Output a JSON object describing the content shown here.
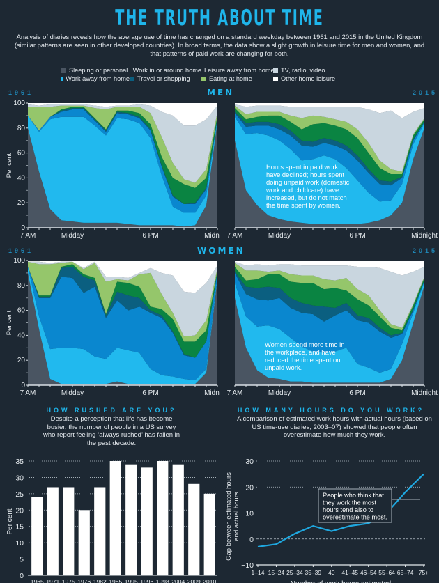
{
  "header": {
    "title": "THE TRUTH ABOUT TIME",
    "intro": "Analysis of diaries reveals how the average use of time has changed on a standard weekday between 1961 and 2015 in the United Kingdom (similar patterns are seen in other developed countries). In broad terms, the data show a slight growth in leisure time for men and women, and that patterns of paid work are changing for both."
  },
  "legend": [
    {
      "label": "Sleeping or personal",
      "color": "#4a5562"
    },
    {
      "label": "Work in or around home",
      "color": "#0a87cf"
    },
    {
      "label": "Leisure away from home",
      "color": "#0a8442"
    },
    {
      "label": "TV, radio, video",
      "color": "#c9d6df"
    },
    {
      "label": "Work away from home",
      "color": "#21b9ee"
    },
    {
      "label": "Travel or shopping",
      "color": "#0b5f80"
    },
    {
      "label": "Eating at home",
      "color": "#95c66b"
    },
    {
      "label": "Other home leisure",
      "color": "#ffffff"
    }
  ],
  "sections": {
    "men": "MEN",
    "women": "WOMEN",
    "year_left": "1961",
    "year_right": "2015"
  },
  "chart_data": [
    {
      "type": "area",
      "title": "MEN 1961",
      "ylabel": "Per cent",
      "ylim": [
        0,
        100
      ],
      "xticks": [
        "7 AM",
        "Midday",
        "6 PM",
        "Midnight"
      ],
      "x": [
        7,
        8,
        9,
        10,
        11,
        12,
        13,
        14,
        15,
        16,
        17,
        18,
        19,
        20,
        21,
        22,
        23,
        24
      ],
      "series": [
        {
          "name": "Sleeping or personal",
          "values": [
            80,
            45,
            15,
            6,
            5,
            4,
            4,
            4,
            4,
            3,
            2,
            2,
            2,
            2,
            1,
            2,
            18,
            85
          ]
        },
        {
          "name": "Work away from home",
          "values": [
            10,
            32,
            72,
            83,
            84,
            85,
            78,
            70,
            84,
            84,
            82,
            70,
            40,
            15,
            11,
            10,
            8,
            2
          ]
        },
        {
          "name": "Work in or around home",
          "values": [
            0,
            1,
            2,
            4,
            6,
            6,
            4,
            3,
            4,
            4,
            4,
            6,
            7,
            8,
            7,
            7,
            5,
            1
          ]
        },
        {
          "name": "Travel or shopping",
          "values": [
            0,
            0,
            0,
            1,
            1,
            1,
            1,
            1,
            1,
            1,
            1,
            1,
            1,
            1,
            0,
            1,
            1,
            0
          ]
        },
        {
          "name": "Leisure away from home",
          "values": [
            0,
            0,
            0,
            1,
            1,
            1,
            1,
            1,
            1,
            2,
            3,
            4,
            7,
            14,
            16,
            12,
            8,
            2
          ]
        },
        {
          "name": "Eating at home",
          "values": [
            7,
            19,
            8,
            3,
            1,
            1,
            8,
            16,
            3,
            3,
            5,
            9,
            16,
            12,
            4,
            4,
            7,
            3
          ]
        },
        {
          "name": "TV, radio, video",
          "values": [
            2,
            1,
            2,
            1,
            1,
            1,
            2,
            2,
            1,
            1,
            2,
            6,
            20,
            38,
            43,
            46,
            40,
            5
          ]
        },
        {
          "name": "Other home leisure",
          "values": [
            1,
            2,
            1,
            1,
            1,
            1,
            2,
            3,
            2,
            2,
            1,
            2,
            7,
            10,
            18,
            18,
            13,
            2
          ]
        }
      ]
    },
    {
      "type": "area",
      "title": "MEN 2015",
      "ylabel": "Per cent",
      "ylim": [
        0,
        100
      ],
      "xticks": [
        "7 AM",
        "Midday",
        "6 PM",
        "Midnight"
      ],
      "x": [
        7,
        8,
        9,
        10,
        11,
        12,
        13,
        14,
        15,
        16,
        17,
        18,
        19,
        20,
        21,
        22,
        23,
        24
      ],
      "series": [
        {
          "name": "Sleeping or personal",
          "values": [
            70,
            30,
            18,
            10,
            7,
            5,
            4,
            3,
            3,
            3,
            3,
            3,
            4,
            6,
            10,
            20,
            55,
            80
          ]
        },
        {
          "name": "Work away from home",
          "values": [
            19,
            45,
            58,
            64,
            63,
            58,
            50,
            52,
            55,
            52,
            45,
            35,
            24,
            15,
            12,
            15,
            12,
            4
          ]
        },
        {
          "name": "Work in or around home",
          "values": [
            3,
            6,
            6,
            8,
            9,
            11,
            12,
            10,
            10,
            11,
            14,
            16,
            16,
            14,
            12,
            5,
            3,
            1
          ]
        },
        {
          "name": "Travel or shopping",
          "values": [
            1,
            3,
            3,
            3,
            4,
            4,
            4,
            4,
            4,
            4,
            4,
            4,
            3,
            3,
            3,
            1,
            1,
            0
          ]
        },
        {
          "name": "Leisure away from home",
          "values": [
            3,
            3,
            4,
            5,
            7,
            7,
            9,
            14,
            12,
            12,
            13,
            14,
            13,
            10,
            6,
            2,
            3,
            2
          ]
        },
        {
          "name": "Eating at home",
          "values": [
            2,
            4,
            4,
            3,
            3,
            5,
            9,
            7,
            5,
            5,
            6,
            7,
            8,
            6,
            4,
            2,
            1,
            1
          ]
        },
        {
          "name": "TV, radio, video",
          "values": [
            1,
            6,
            5,
            5,
            5,
            7,
            9,
            7,
            8,
            10,
            12,
            18,
            27,
            38,
            47,
            43,
            18,
            8
          ]
        },
        {
          "name": "Other home leisure",
          "values": [
            1,
            3,
            2,
            2,
            2,
            3,
            3,
            3,
            3,
            3,
            3,
            3,
            5,
            8,
            6,
            12,
            7,
            4
          ]
        }
      ]
    },
    {
      "type": "area",
      "title": "WOMEN 1961",
      "ylabel": "Per cent",
      "ylim": [
        0,
        100
      ],
      "xticks": [
        "7 AM",
        "Midday",
        "6 PM",
        "Midnight"
      ],
      "x": [
        7,
        8,
        9,
        10,
        11,
        12,
        13,
        14,
        15,
        16,
        17,
        18,
        19,
        20,
        21,
        22,
        23,
        24
      ],
      "series": [
        {
          "name": "Sleeping or personal",
          "values": [
            90,
            45,
            5,
            1,
            1,
            1,
            1,
            1,
            3,
            1,
            1,
            1,
            1,
            1,
            1,
            1,
            10,
            85
          ]
        },
        {
          "name": "Work away from home",
          "values": [
            5,
            10,
            24,
            29,
            29,
            28,
            22,
            20,
            27,
            27,
            25,
            12,
            7,
            6,
            4,
            3,
            3,
            2
          ]
        },
        {
          "name": "Work in or around home",
          "values": [
            0,
            15,
            41,
            57,
            56,
            45,
            56,
            33,
            38,
            32,
            37,
            45,
            46,
            35,
            19,
            18,
            22,
            4
          ]
        },
        {
          "name": "Travel or shopping",
          "values": [
            0,
            1,
            1,
            7,
            9,
            13,
            5,
            2,
            7,
            12,
            7,
            2,
            2,
            1,
            1,
            0,
            0,
            0
          ]
        },
        {
          "name": "Leisure away from home",
          "values": [
            0,
            1,
            1,
            1,
            2,
            2,
            2,
            1,
            8,
            10,
            9,
            3,
            5,
            10,
            10,
            13,
            9,
            1
          ]
        },
        {
          "name": "Eating at home",
          "values": [
            4,
            25,
            25,
            3,
            2,
            4,
            12,
            26,
            2,
            2,
            10,
            27,
            12,
            5,
            4,
            5,
            8,
            2
          ]
        },
        {
          "name": "TV, radio, video",
          "values": [
            0,
            2,
            1,
            1,
            0,
            1,
            1,
            4,
            2,
            2,
            1,
            4,
            17,
            30,
            36,
            34,
            30,
            2
          ]
        },
        {
          "name": "Other home leisure",
          "values": [
            1,
            1,
            2,
            1,
            1,
            6,
            1,
            13,
            13,
            14,
            10,
            6,
            10,
            12,
            25,
            26,
            18,
            4
          ]
        }
      ]
    },
    {
      "type": "area",
      "title": "WOMEN 2015",
      "ylabel": "Per cent",
      "ylim": [
        0,
        100
      ],
      "xticks": [
        "7 AM",
        "Midday",
        "6 PM",
        "Midnight"
      ],
      "x": [
        7,
        8,
        9,
        10,
        11,
        12,
        13,
        14,
        15,
        16,
        17,
        18,
        19,
        20,
        21,
        22,
        23,
        24
      ],
      "series": [
        {
          "name": "Sleeping or personal",
          "values": [
            70,
            30,
            12,
            6,
            5,
            3,
            3,
            2,
            2,
            2,
            2,
            2,
            2,
            2,
            5,
            20,
            50,
            80
          ]
        },
        {
          "name": "Work away from home",
          "values": [
            12,
            25,
            35,
            42,
            40,
            35,
            28,
            25,
            24,
            25,
            28,
            15,
            12,
            8,
            8,
            13,
            8,
            3
          ]
        },
        {
          "name": "Work in or around home",
          "values": [
            8,
            18,
            22,
            20,
            25,
            24,
            27,
            30,
            25,
            29,
            30,
            35,
            36,
            33,
            25,
            8,
            2,
            1
          ]
        },
        {
          "name": "Travel or shopping",
          "values": [
            1,
            6,
            9,
            11,
            8,
            8,
            8,
            7,
            12,
            6,
            6,
            4,
            4,
            3,
            2,
            1,
            1,
            0
          ]
        },
        {
          "name": "Leisure away from home",
          "values": [
            4,
            5,
            7,
            10,
            11,
            13,
            16,
            18,
            14,
            16,
            10,
            13,
            10,
            9,
            6,
            2,
            3,
            2
          ]
        },
        {
          "name": "Eating at home",
          "values": [
            3,
            8,
            7,
            2,
            3,
            6,
            6,
            6,
            8,
            6,
            10,
            8,
            8,
            5,
            3,
            2,
            1,
            1
          ]
        },
        {
          "name": "TV, radio, video",
          "values": [
            1,
            4,
            5,
            5,
            5,
            8,
            8,
            8,
            11,
            12,
            10,
            18,
            23,
            34,
            42,
            42,
            26,
            8
          ]
        },
        {
          "name": "Other home leisure",
          "values": [
            1,
            4,
            3,
            4,
            3,
            3,
            4,
            4,
            4,
            4,
            4,
            5,
            5,
            6,
            9,
            12,
            9,
            5
          ]
        }
      ]
    },
    {
      "type": "bar",
      "title": "HOW RUSHED ARE YOU?",
      "subtitle": "Despite a perception that life has become busier, the number of people in a US survey who report feeling ‘always rushed’ has fallen in the past decade.",
      "xlabel": "",
      "ylabel": "Per cent",
      "ylim": [
        0,
        35
      ],
      "yticks": [
        0,
        5,
        10,
        15,
        20,
        25,
        30,
        35
      ],
      "grid": true,
      "categories": [
        "1965",
        "1971",
        "1975",
        "1976",
        "1982",
        "1985",
        "1995",
        "1996",
        "1998",
        "2004",
        "2009",
        "2010"
      ],
      "values": [
        24,
        27,
        27,
        20,
        27,
        35,
        34,
        33,
        35,
        34,
        28,
        25
      ]
    },
    {
      "type": "line",
      "title": "HOW MANY HOURS DO YOU WORK?",
      "subtitle": "A comparison of estimated work hours with actual hours (based on US time-use diaries, 2003–07) showed that people often overestimate how much they work.",
      "xlabel": "Number of work hours estimated",
      "ylabel": "Gap between estimated hours and actual hours",
      "ylim": [
        -10,
        30
      ],
      "yticks": [
        -10,
        0,
        10,
        20,
        30
      ],
      "grid": true,
      "categories": [
        "1–14",
        "15–24",
        "25–34",
        "35–39",
        "40",
        "41–45",
        "46–54",
        "55–64",
        "65–74",
        "75+"
      ],
      "values": [
        -3,
        -2,
        2,
        5,
        3,
        5,
        6,
        10,
        18,
        25
      ],
      "annotation": "People who think that they work the most hours tend also to overestimate the most."
    }
  ],
  "notes": {
    "men": "Hours spent in paid work have declined; hours spent doing unpaid work (domestic work and childcare) have increased, but do not match the time spent by women.",
    "women": "Women spend more time in the workplace, and have reduced the time spent on unpaid work."
  },
  "colors": {
    "accent": "#1fb5ea",
    "line": "#1fa8e0",
    "background": "#1d2833"
  }
}
